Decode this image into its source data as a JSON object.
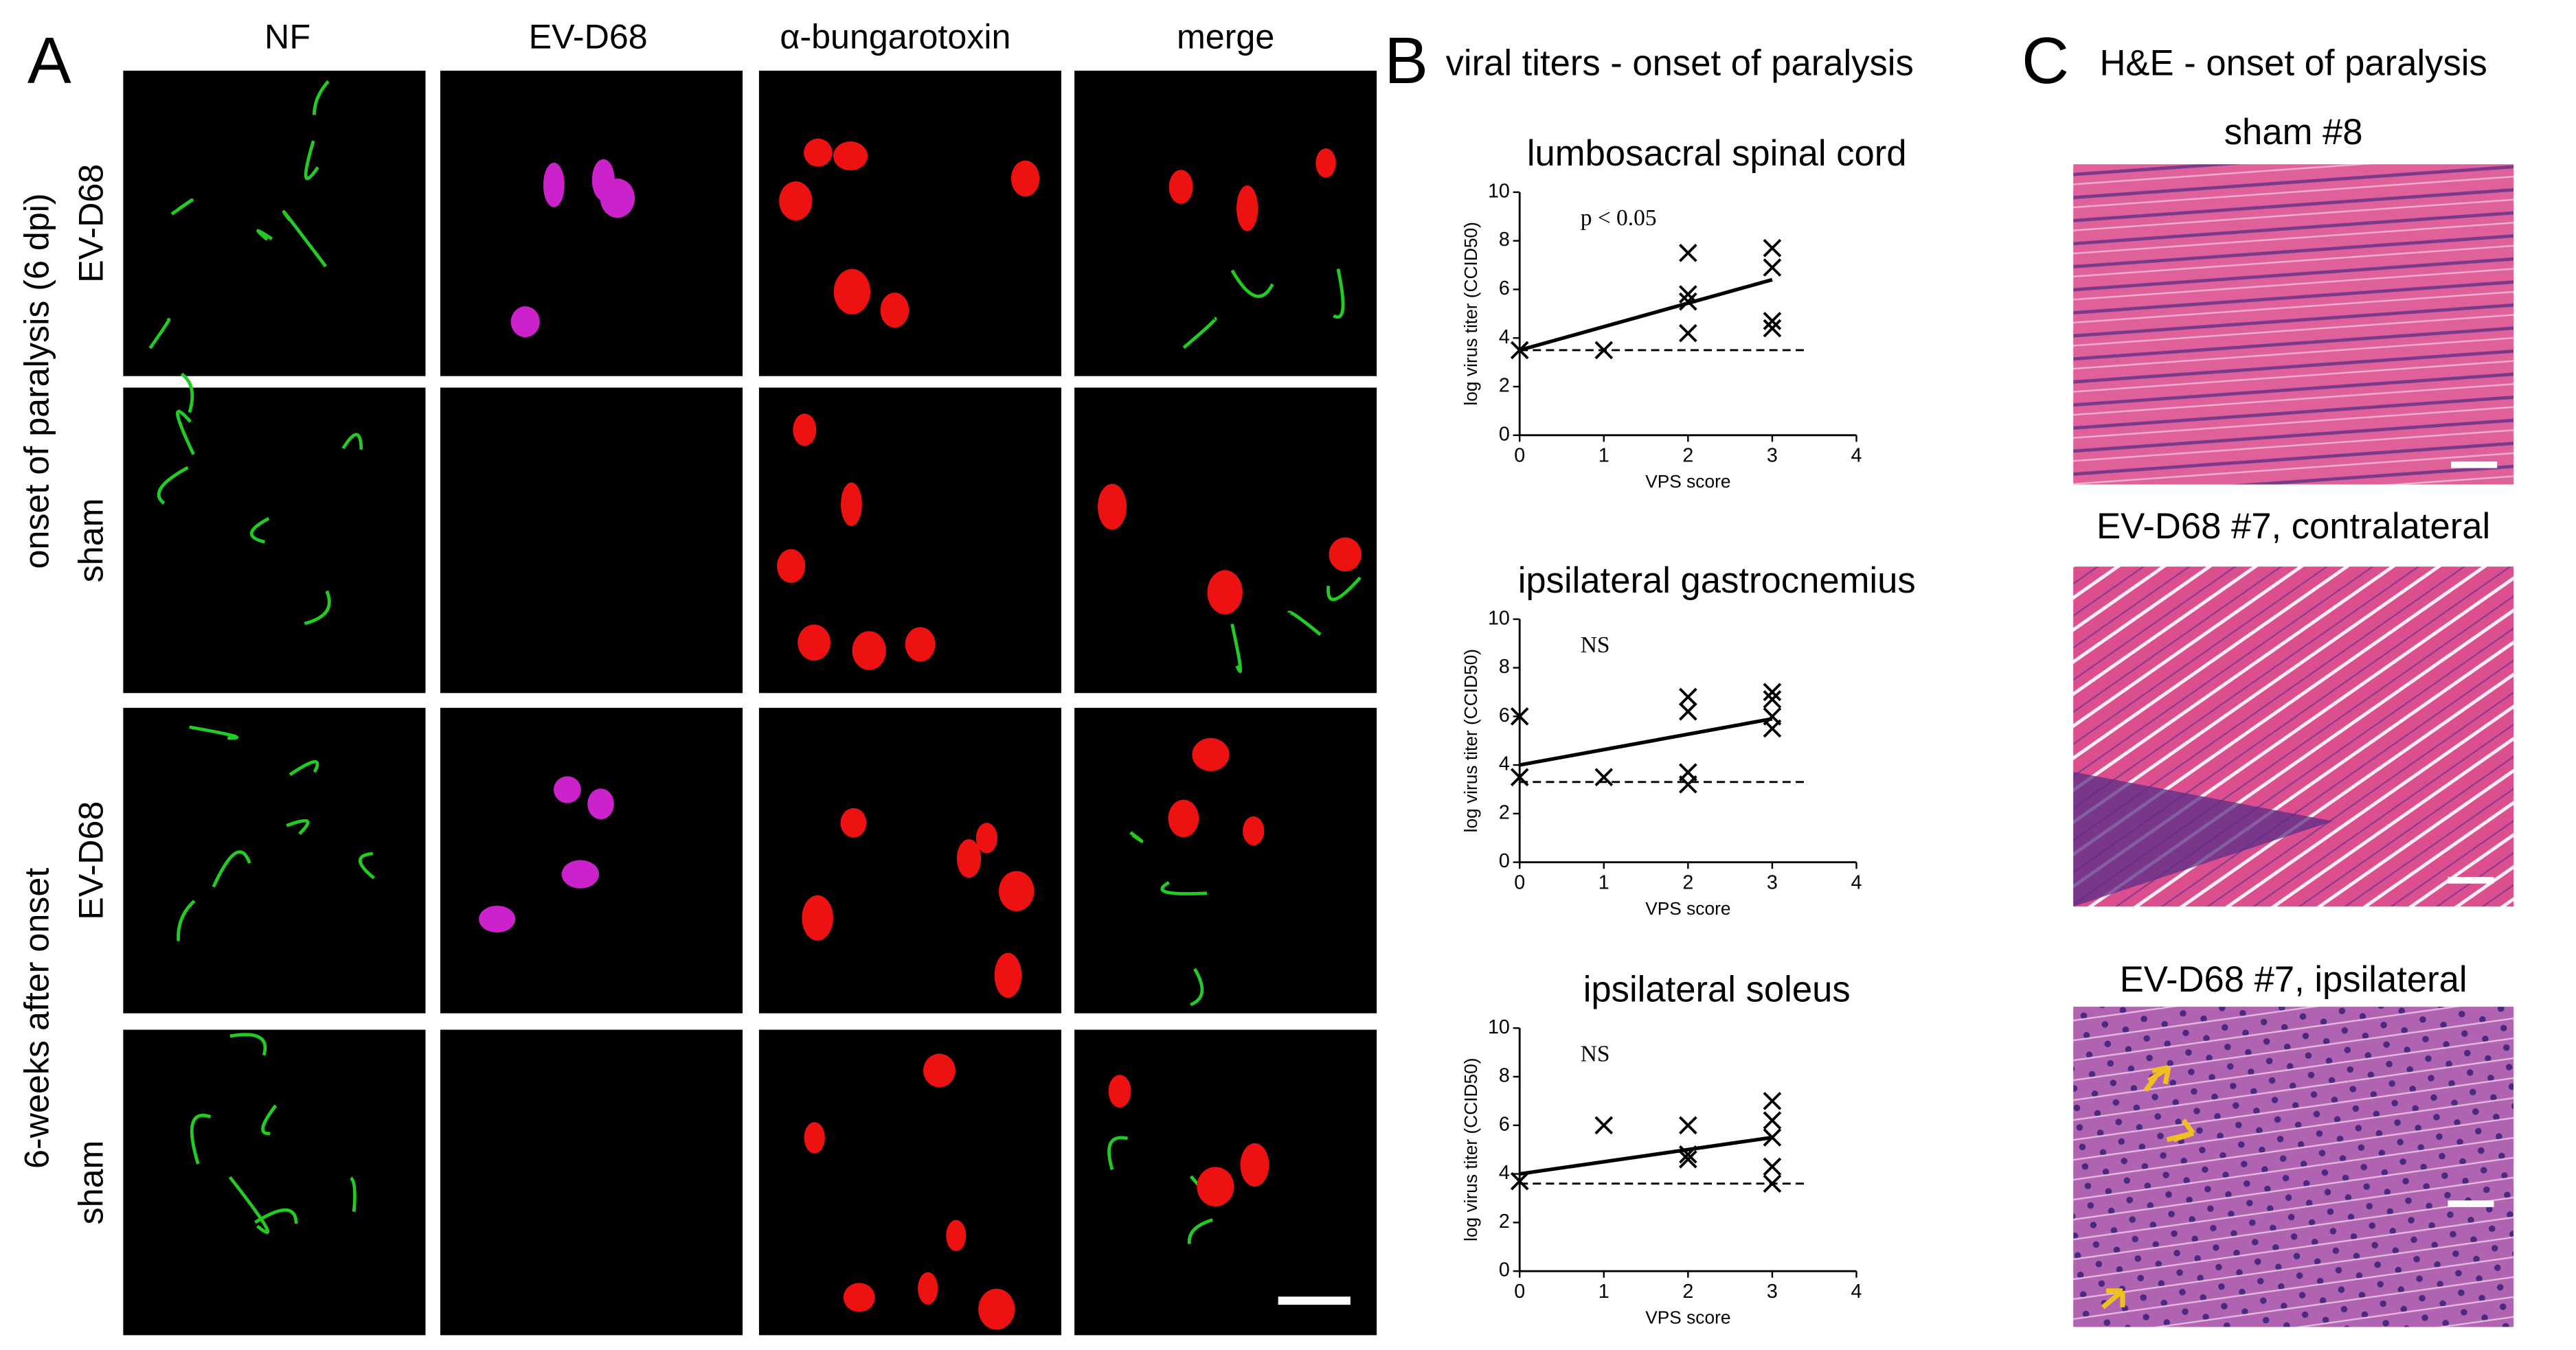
{
  "figure": {
    "panel_a": {
      "label": "A",
      "columns": [
        "NF",
        "EV-D68",
        "α-bungarotoxin",
        "merge"
      ],
      "column_colors": [
        "#22cc22",
        "#dd22dd",
        "#ee2222",
        "#000000"
      ],
      "groups": [
        "onset of paralysis (6 dpi)",
        "6-weeks after onset"
      ],
      "rows": [
        "EV-D68",
        "sham",
        "EV-D68",
        "sham"
      ]
    },
    "panel_b": {
      "label": "B",
      "title": "viral titers - onset of paralysis"
    },
    "panel_c": {
      "label": "C",
      "title": "H&E - onset of paralysis",
      "images": [
        "sham #8",
        "EV-D68 #7, contralateral",
        "EV-D68 #7, ipsilateral"
      ]
    }
  },
  "chart_data": [
    {
      "type": "scatter",
      "title": "lumbosacral spinal cord",
      "annotation": "p < 0.05",
      "x_label": "VPS score",
      "y_label": "log virus titer (CCID50)",
      "color": "#000000",
      "xlim": [
        0,
        4
      ],
      "ylim": [
        0,
        10
      ],
      "xticks": [
        0,
        1,
        2,
        3,
        4
      ],
      "yticks": [
        0,
        2,
        4,
        6,
        8,
        10
      ],
      "x": [
        0,
        1,
        2,
        2,
        2,
        2,
        3,
        3,
        3,
        3
      ],
      "values": [
        3.5,
        3.5,
        7.5,
        5.8,
        5.5,
        4.2,
        7.7,
        6.9,
        4.7,
        4.4
      ],
      "fit_x": [
        0,
        3
      ],
      "fit_y": [
        3.5,
        6.4
      ],
      "threshold": 3.5
    },
    {
      "type": "scatter",
      "title": "ipsilateral gastrocnemius",
      "annotation": "NS",
      "x_label": "VPS score",
      "y_label": "log virus titer (CCID50)",
      "color": "#000000",
      "xlim": [
        0,
        4
      ],
      "ylim": [
        0,
        10
      ],
      "xticks": [
        0,
        1,
        2,
        3,
        4
      ],
      "yticks": [
        0,
        2,
        4,
        6,
        8,
        10
      ],
      "x": [
        0,
        0,
        1,
        2,
        2,
        2,
        2,
        3,
        3,
        3,
        3
      ],
      "values": [
        6,
        3.5,
        3.5,
        6.8,
        6.2,
        3.7,
        3.2,
        7,
        6.7,
        6,
        5.5
      ],
      "fit_x": [
        0,
        3
      ],
      "fit_y": [
        4,
        5.9
      ],
      "threshold": 3.3
    },
    {
      "type": "scatter",
      "title": "ipsilateral soleus",
      "annotation": "NS",
      "x_label": "VPS score",
      "y_label": "log virus titer (CCID50)",
      "color": "#000000",
      "xlim": [
        0,
        4
      ],
      "ylim": [
        0,
        10
      ],
      "xticks": [
        0,
        1,
        2,
        3,
        4
      ],
      "yticks": [
        0,
        2,
        4,
        6,
        8,
        10
      ],
      "x": [
        0,
        1,
        2,
        2,
        2,
        3,
        3,
        3,
        3,
        3
      ],
      "values": [
        3.7,
        6,
        6,
        4.8,
        4.6,
        7,
        6.2,
        5.5,
        4.3,
        3.6
      ],
      "fit_x": [
        0,
        3
      ],
      "fit_y": [
        4,
        5.5
      ],
      "threshold": 3.6
    }
  ]
}
